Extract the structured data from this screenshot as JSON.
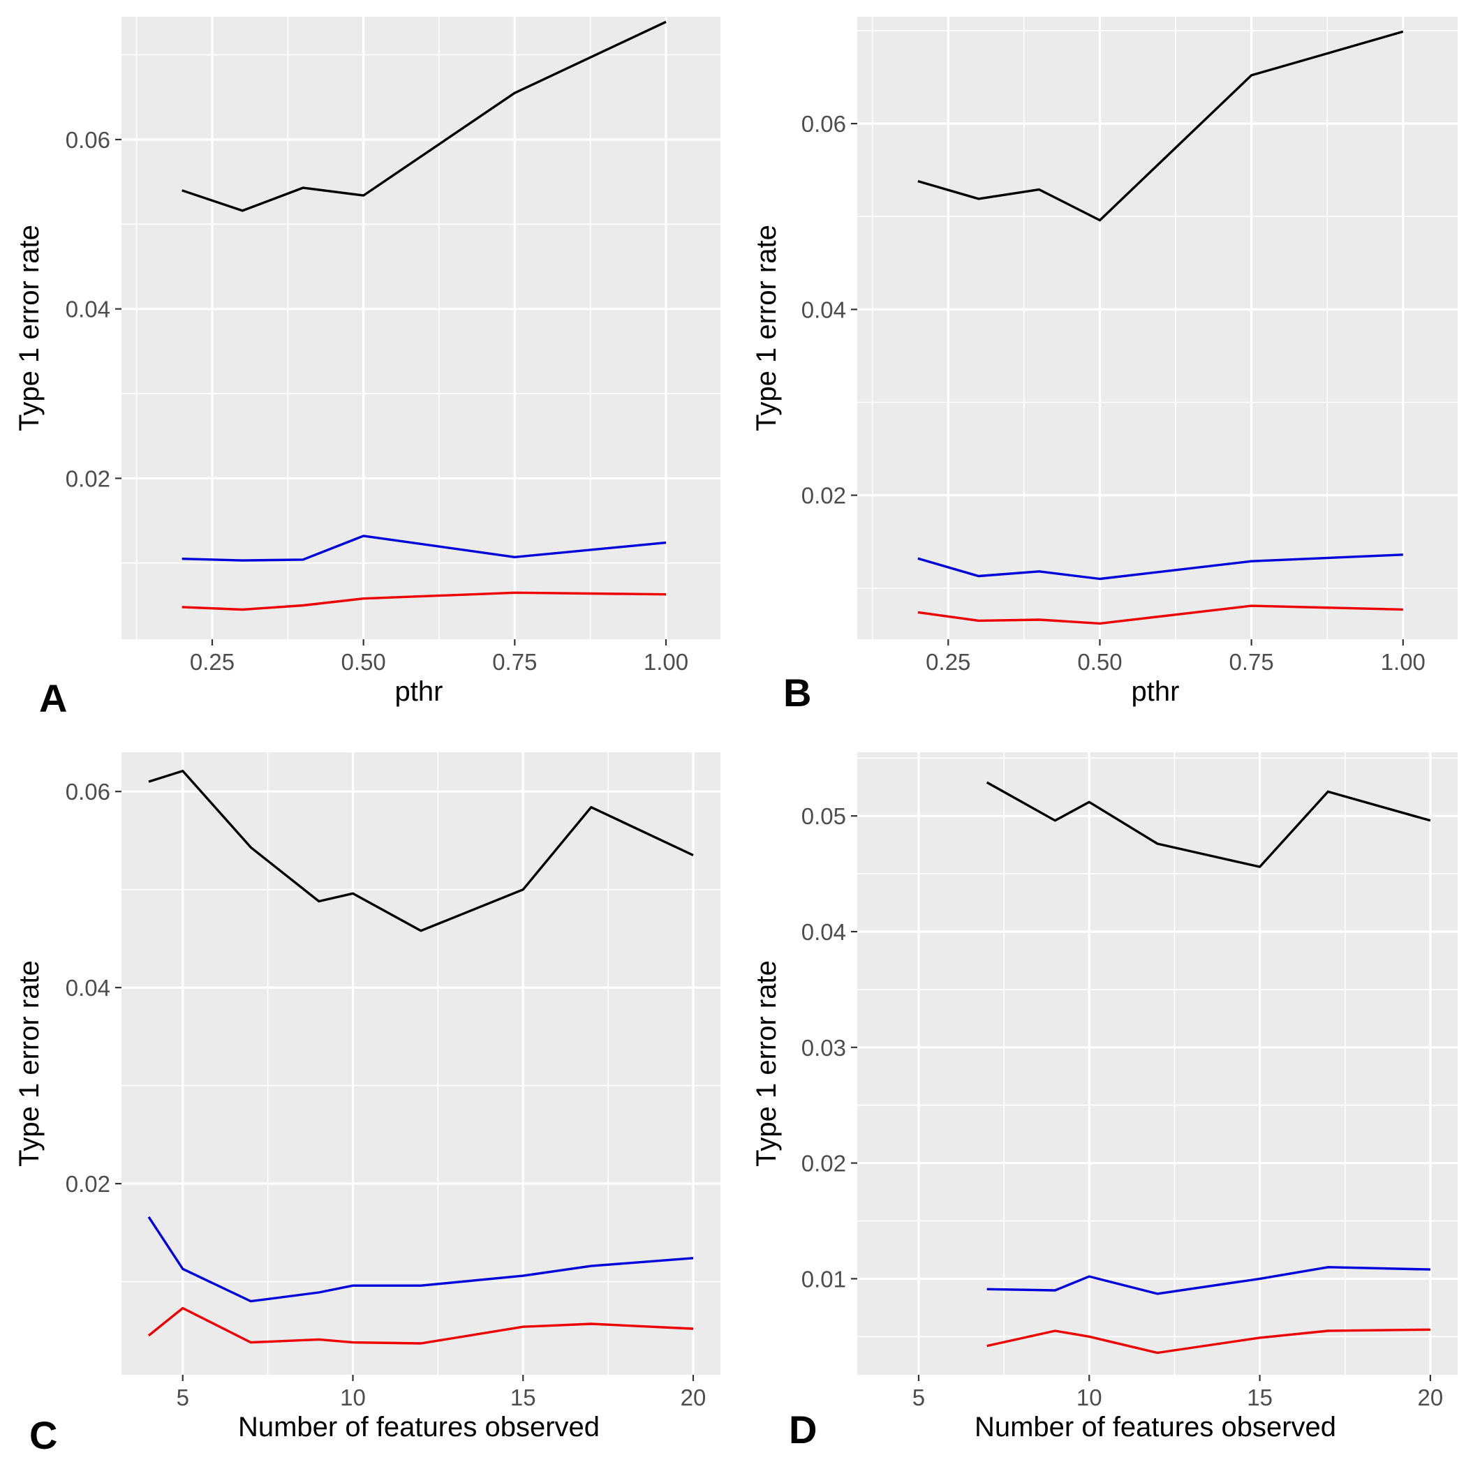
{
  "chart_data": [
    {
      "panel": "A",
      "type": "line",
      "xlabel": "pthr",
      "ylabel": "Type 1 error rate",
      "xlim": [
        0.1,
        1.09
      ],
      "ylim": [
        0.001,
        0.0745
      ],
      "xticks": [
        0.25,
        0.5,
        0.75,
        1.0
      ],
      "xtick_labels": [
        "0.25",
        "0.50",
        "0.75",
        "1.00"
      ],
      "yticks": [
        0.02,
        0.04,
        0.06
      ],
      "ytick_labels": [
        "0.02",
        "0.04",
        "0.06"
      ],
      "x": [
        0.2,
        0.3,
        0.4,
        0.5,
        0.75,
        1.0
      ],
      "series": [
        {
          "color": "#000000",
          "values": [
            0.054,
            0.0516,
            0.0543,
            0.0534,
            0.0655,
            0.0739
          ]
        },
        {
          "color": "#0000dd",
          "values": [
            0.0105,
            0.0103,
            0.0104,
            0.0132,
            0.0107,
            0.0124
          ]
        },
        {
          "color": "#ee0000",
          "values": [
            0.0048,
            0.0045,
            0.005,
            0.0058,
            0.0065,
            0.0063
          ]
        }
      ],
      "grid": true,
      "legend": "none"
    },
    {
      "panel": "B",
      "type": "line",
      "xlabel": "pthr",
      "ylabel": "Type 1 error rate",
      "xlim": [
        0.1,
        1.09
      ],
      "ylim": [
        0.0045,
        0.0715
      ],
      "xticks": [
        0.25,
        0.5,
        0.75,
        1.0
      ],
      "xtick_labels": [
        "0.25",
        "0.50",
        "0.75",
        "1.00"
      ],
      "yticks": [
        0.02,
        0.04,
        0.06
      ],
      "ytick_labels": [
        "0.02",
        "0.04",
        "0.06"
      ],
      "x": [
        0.2,
        0.3,
        0.4,
        0.5,
        0.75,
        1.0
      ],
      "series": [
        {
          "color": "#000000",
          "values": [
            0.0538,
            0.0519,
            0.0529,
            0.0496,
            0.0652,
            0.0699
          ]
        },
        {
          "color": "#0000dd",
          "values": [
            0.0132,
            0.0113,
            0.0118,
            0.011,
            0.0129,
            0.0136
          ]
        },
        {
          "color": "#ee0000",
          "values": [
            0.0074,
            0.0065,
            0.0066,
            0.0062,
            0.0081,
            0.0077
          ]
        }
      ],
      "grid": true,
      "legend": "none"
    },
    {
      "panel": "C",
      "type": "line",
      "xlabel": "Number of features observed",
      "ylabel": "Type 1 error rate",
      "xlim": [
        3.2,
        20.8
      ],
      "ylim": [
        0.0005,
        0.064
      ],
      "xticks": [
        5,
        10,
        15,
        20
      ],
      "xtick_labels": [
        "5",
        "10",
        "15",
        "20"
      ],
      "yticks": [
        0.02,
        0.04,
        0.06
      ],
      "ytick_labels": [
        "0.02",
        "0.04",
        "0.06"
      ],
      "x": [
        4,
        5,
        7,
        9,
        10,
        12,
        15,
        17,
        20
      ],
      "series": [
        {
          "color": "#000000",
          "values": [
            0.061,
            0.0621,
            0.0543,
            0.0488,
            0.0496,
            0.0458,
            0.05,
            0.0584,
            0.0535
          ]
        },
        {
          "color": "#0000dd",
          "values": [
            0.0166,
            0.0113,
            0.008,
            0.0089,
            0.0096,
            0.0096,
            0.0106,
            0.0116,
            0.0124
          ]
        },
        {
          "color": "#ee0000",
          "values": [
            0.0045,
            0.0073,
            0.0038,
            0.0041,
            0.0038,
            0.0037,
            0.0054,
            0.0057,
            0.0052
          ]
        }
      ],
      "grid": true,
      "legend": "none"
    },
    {
      "panel": "D",
      "type": "line",
      "xlabel": "Number of features observed",
      "ylabel": "Type 1 error rate",
      "xlim": [
        3.2,
        20.8
      ],
      "ylim": [
        0.0017,
        0.0555
      ],
      "xticks": [
        5,
        10,
        15,
        20
      ],
      "xtick_labels": [
        "5",
        "10",
        "15",
        "20"
      ],
      "yticks": [
        0.01,
        0.02,
        0.03,
        0.04,
        0.05
      ],
      "ytick_labels": [
        "0.01",
        "0.02",
        "0.03",
        "0.04",
        "0.05"
      ],
      "x": [
        7,
        9,
        10,
        12,
        15,
        17,
        20
      ],
      "series": [
        {
          "color": "#000000",
          "values": [
            0.0529,
            0.0496,
            0.0512,
            0.0476,
            0.0456,
            0.0521,
            0.0496
          ]
        },
        {
          "color": "#0000dd",
          "values": [
            0.0091,
            0.009,
            0.0102,
            0.0087,
            0.01,
            0.011,
            0.0108
          ]
        },
        {
          "color": "#ee0000",
          "values": [
            0.0042,
            0.0055,
            0.005,
            0.0036,
            0.0049,
            0.0055,
            0.0056
          ]
        }
      ],
      "grid": true,
      "legend": "none"
    }
  ]
}
